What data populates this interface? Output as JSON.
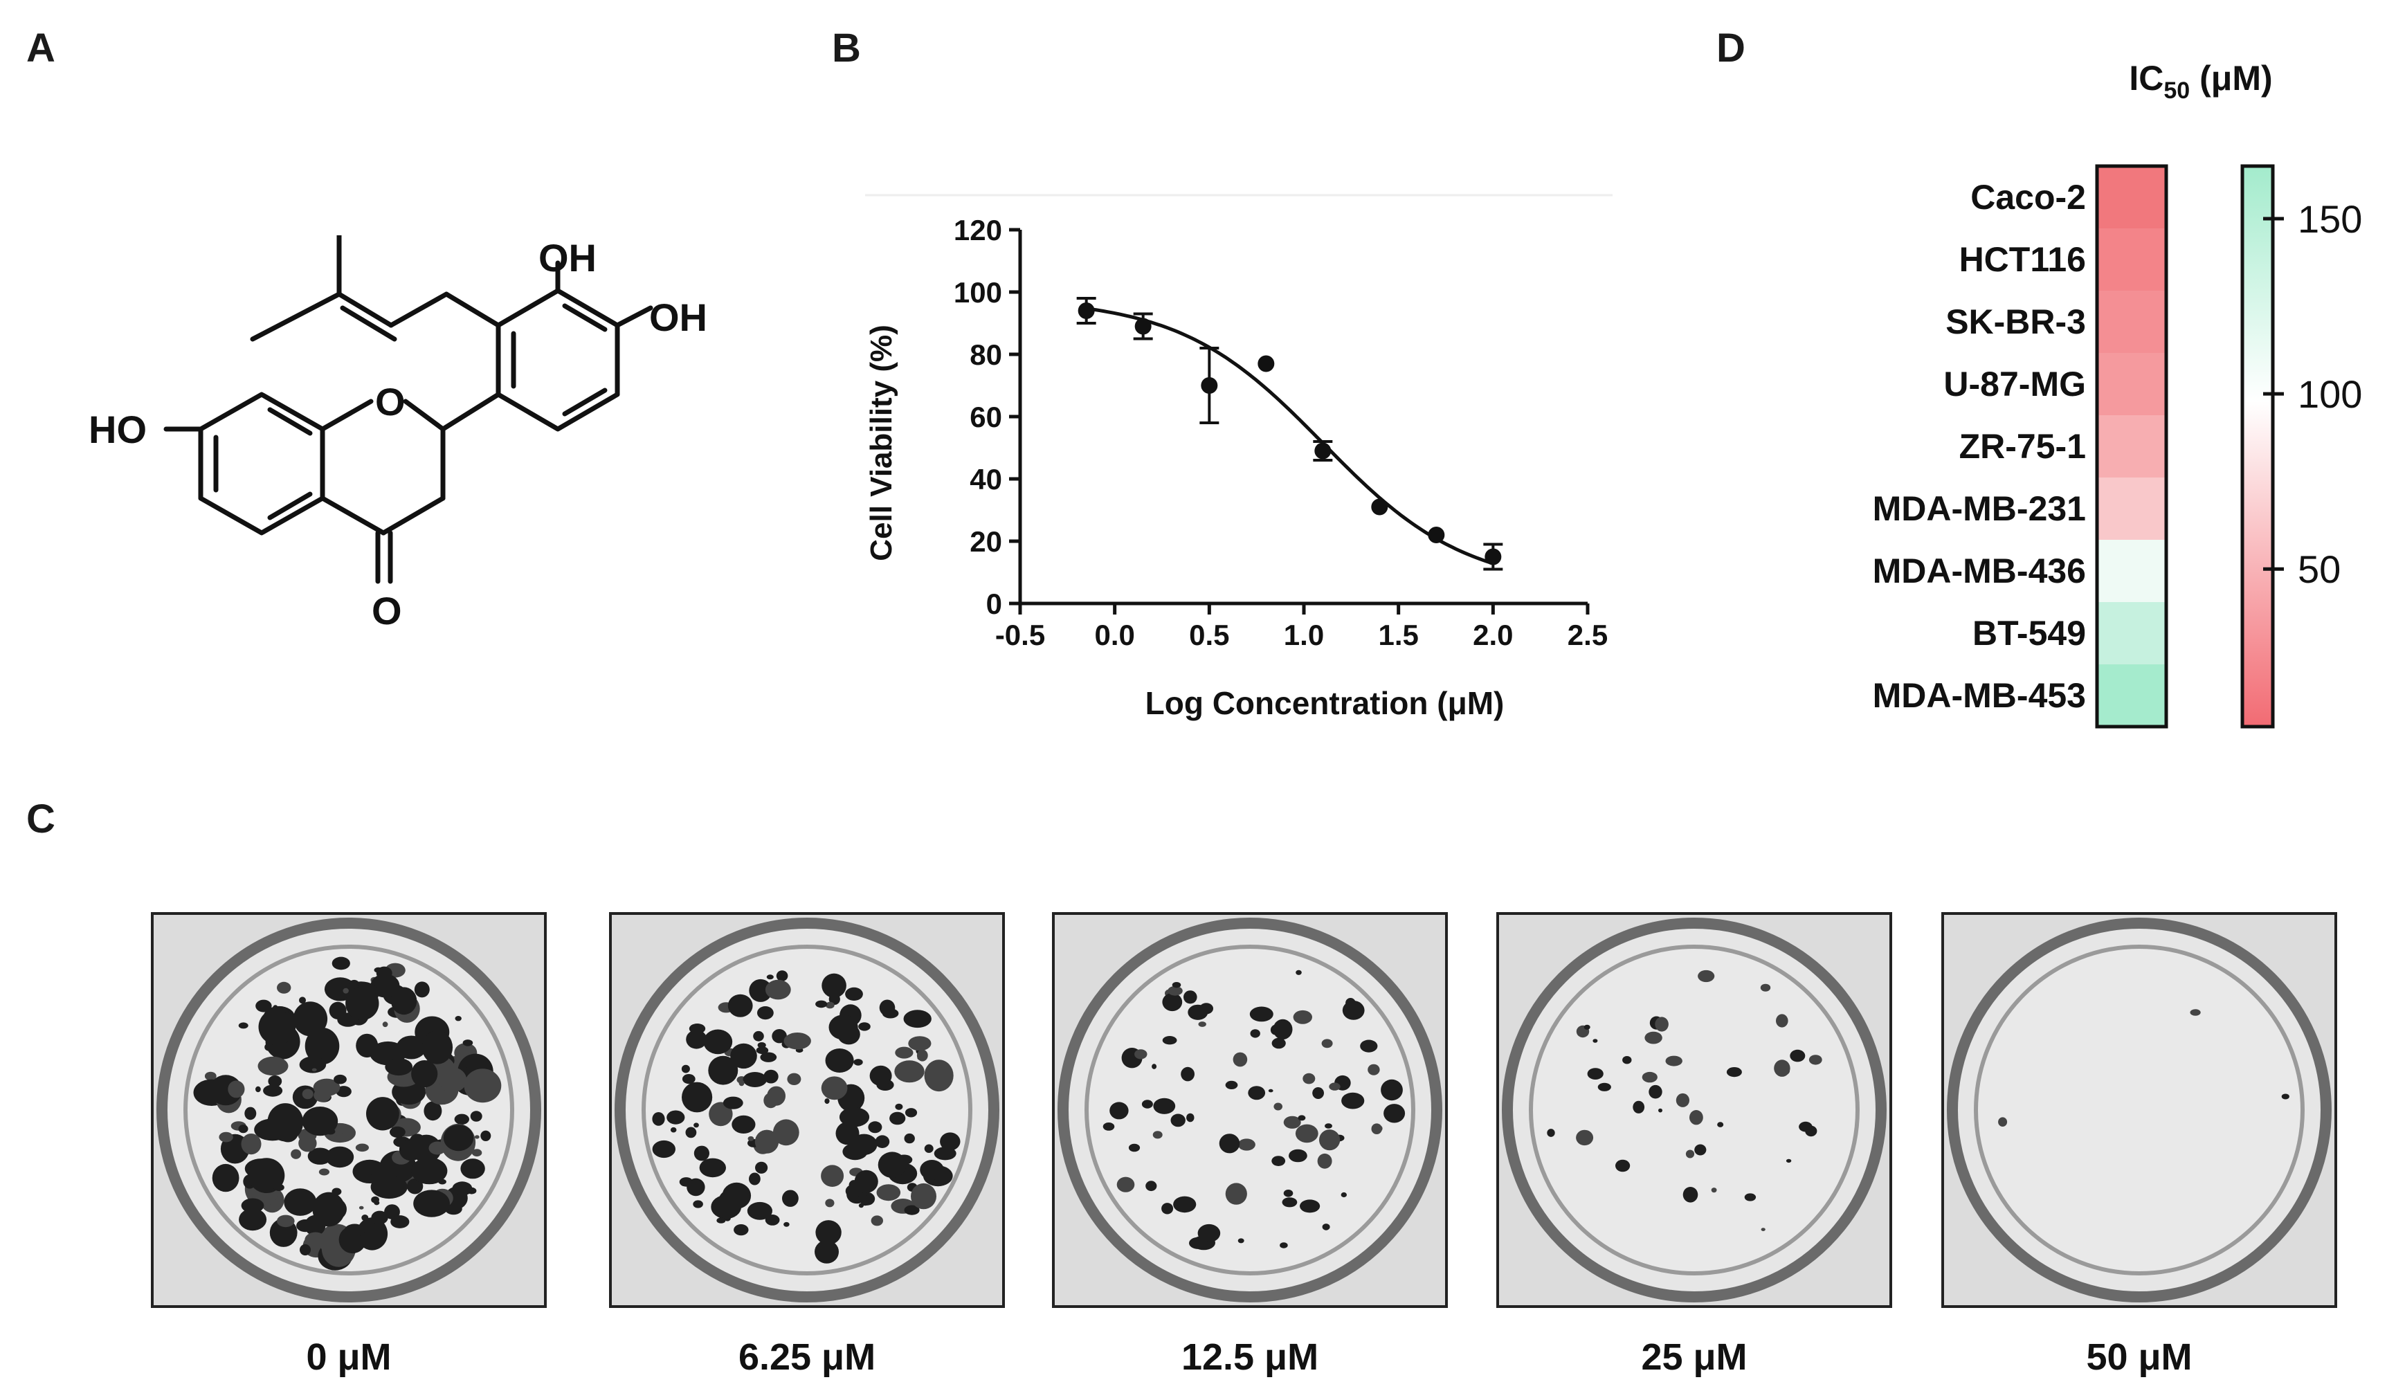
{
  "panels": {
    "a": "A",
    "b": "B",
    "c": "C",
    "d": "D"
  },
  "structure": {
    "labels": {
      "oh_top": "OH",
      "oh_right": "OH",
      "ho_left": "HO",
      "o_ring": "O",
      "o_ketone": "O"
    }
  },
  "chart_data": [
    {
      "type": "scatter",
      "subtype": "dose-response with fitted sigmoid curve and error bars",
      "xlabel": "Log Concentration (μM)",
      "ylabel": "Cell Viability (%)",
      "xlim": [
        -0.5,
        2.5
      ],
      "ylim": [
        0,
        120
      ],
      "xticks": [
        -0.5,
        0.0,
        0.5,
        1.0,
        1.5,
        2.0,
        2.5
      ],
      "xtick_labels": [
        "-0.5",
        "0.0",
        "0.5",
        "1.0",
        "1.5",
        "2.0",
        "2.5"
      ],
      "yticks": [
        0,
        20,
        40,
        60,
        80,
        100,
        120
      ],
      "ytick_labels": [
        "0",
        "20",
        "40",
        "60",
        "80",
        "100",
        "120"
      ],
      "grid": false,
      "points": [
        {
          "x": -0.15,
          "y": 94,
          "err": 4
        },
        {
          "x": 0.15,
          "y": 89,
          "err": 4
        },
        {
          "x": 0.5,
          "y": 70,
          "err": 12
        },
        {
          "x": 0.8,
          "y": 77,
          "err": 0
        },
        {
          "x": 1.1,
          "y": 49,
          "err": 3
        },
        {
          "x": 1.4,
          "y": 31,
          "err": 0
        },
        {
          "x": 1.7,
          "y": 22,
          "err": 0
        },
        {
          "x": 2.0,
          "y": 15,
          "err": 4
        }
      ],
      "fit": {
        "top": 98,
        "bottom": 5,
        "log_ic50": 1.1,
        "hill": 1.15,
        "x_from": -0.15,
        "x_to": 2.0
      }
    },
    {
      "type": "heatmap",
      "title": "IC",
      "title_sub": "50",
      "title_unit": " (μM)",
      "rows": [
        "Caco-2",
        "HCT116",
        "SK-BR-3",
        "U-87-MG",
        "ZR-75-1",
        "MDA-MB-231",
        "MDA-MB-436",
        "BT-549",
        "MDA-MB-453"
      ],
      "values": [
        12,
        20,
        30,
        38,
        48,
        62,
        95,
        130,
        160
      ],
      "colors": [
        "#f1787d",
        "#f38489",
        "#f48f94",
        "#f59a9e",
        "#f7aeb1",
        "#f9c8ca",
        "#effaf5",
        "#c6f1df",
        "#a5ebcd"
      ],
      "colorbar": {
        "range": [
          5,
          165
        ],
        "ticks": [
          150,
          100,
          50
        ],
        "tick_labels": [
          "150",
          "100",
          "50"
        ],
        "low_color": "#f26b73",
        "mid_color": "#ffffff",
        "high_color": "#a3ebcc"
      }
    }
  ],
  "colony_assay": {
    "wells": [
      {
        "label": "0 μM",
        "density": 1.0
      },
      {
        "label": "6.25 μM",
        "density": 0.75
      },
      {
        "label": "12.5 μM",
        "density": 0.45
      },
      {
        "label": "25 μM",
        "density": 0.22
      },
      {
        "label": "50 μM",
        "density": 0.02
      }
    ]
  }
}
